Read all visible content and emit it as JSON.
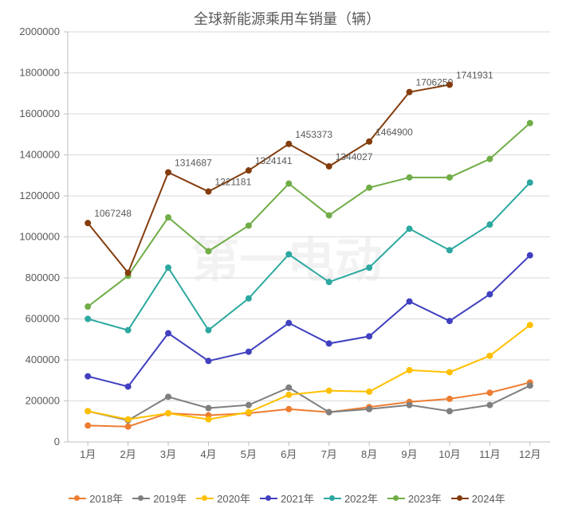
{
  "chart": {
    "type": "line",
    "title": "全球新能源乘用车销量（辆）",
    "title_fontsize": 18,
    "title_color": "#595959",
    "background_color": "#ffffff",
    "grid_color": "#d9d9d9",
    "axis_color": "#bfbfbf",
    "tick_label_color": "#595959",
    "tick_label_fontsize": 13,
    "data_label_fontsize": 12,
    "line_width": 2,
    "marker_style": "circle",
    "marker_size": 4,
    "categories": [
      "1月",
      "2月",
      "3月",
      "4月",
      "5月",
      "6月",
      "7月",
      "8月",
      "9月",
      "10月",
      "11月",
      "12月"
    ],
    "ylim": [
      0,
      2000000
    ],
    "ytick_step": 200000,
    "yticks": [
      0,
      200000,
      400000,
      600000,
      800000,
      1000000,
      1200000,
      1400000,
      1600000,
      1800000,
      2000000
    ],
    "series": [
      {
        "name": "2018年",
        "color": "#ed7d31",
        "values": [
          80000,
          75000,
          140000,
          130000,
          140000,
          160000,
          145000,
          170000,
          195000,
          210000,
          240000,
          290000
        ]
      },
      {
        "name": "2019年",
        "color": "#7f7f7f",
        "values": [
          150000,
          105000,
          220000,
          165000,
          180000,
          265000,
          145000,
          160000,
          180000,
          150000,
          180000,
          275000
        ]
      },
      {
        "name": "2020年",
        "color": "#ffc000",
        "values": [
          150000,
          110000,
          140000,
          110000,
          145000,
          230000,
          250000,
          245000,
          350000,
          340000,
          420000,
          570000
        ]
      },
      {
        "name": "2021年",
        "color": "#4040c0",
        "values": [
          320000,
          270000,
          530000,
          395000,
          440000,
          580000,
          480000,
          515000,
          685000,
          590000,
          720000,
          910000
        ]
      },
      {
        "name": "2022年",
        "color": "#2ca8a0",
        "values": [
          600000,
          545000,
          850000,
          545000,
          700000,
          915000,
          780000,
          850000,
          1040000,
          935000,
          1060000,
          1265000
        ]
      },
      {
        "name": "2023年",
        "color": "#70ad47",
        "values": [
          660000,
          810000,
          1095000,
          930000,
          1055000,
          1260000,
          1105000,
          1240000,
          1290000,
          1290000,
          1380000,
          1555000
        ]
      },
      {
        "name": "2024年",
        "color": "#843c0c",
        "values": [
          1067248,
          825000,
          1314687,
          1221181,
          1324141,
          1453373,
          1344027,
          1464900,
          1706250,
          1741931
        ],
        "data_labels": [
          1067248,
          null,
          1314687,
          1221181,
          1324141,
          1453373,
          1344027,
          1464900,
          1706250,
          1741931
        ]
      }
    ],
    "legend_position": "bottom",
    "watermark_text": "第一电动"
  }
}
